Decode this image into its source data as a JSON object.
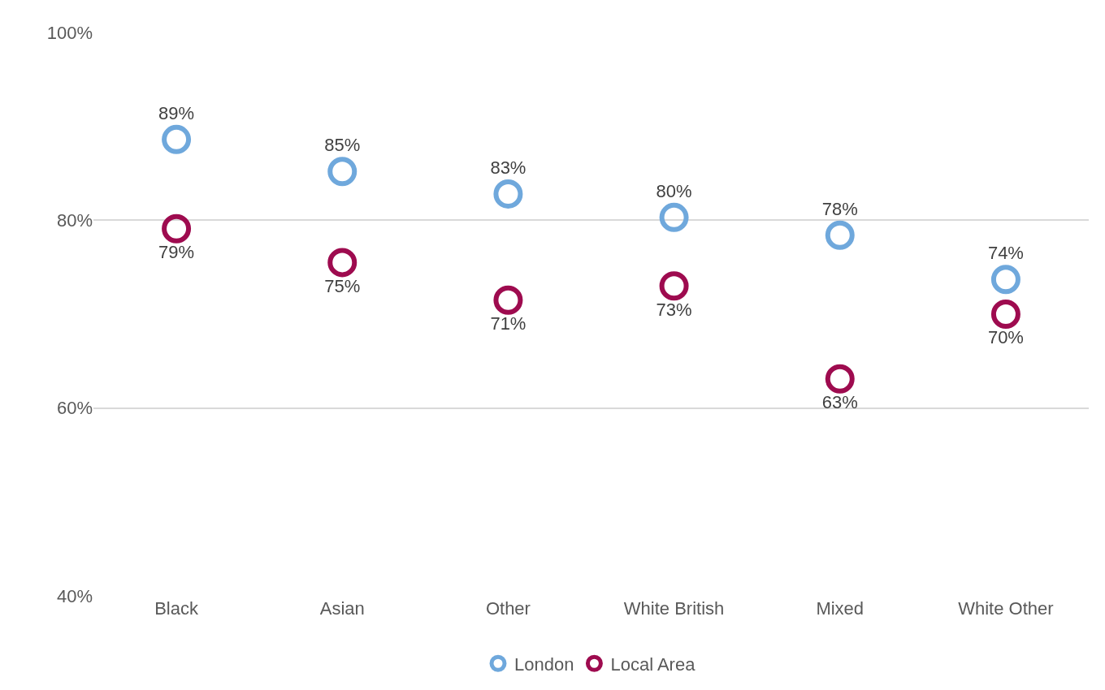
{
  "chart_data": {
    "type": "scatter",
    "categories": [
      "Black",
      "Asian",
      "Other",
      "White British",
      "Mixed",
      "White Other"
    ],
    "series": [
      {
        "name": "London",
        "color": "#6fa8dc",
        "values": [
          88.6,
          85.2,
          82.8,
          80.3,
          78.4,
          73.7
        ],
        "value_labels": [
          "89%",
          "85%",
          "83%",
          "80%",
          "78%",
          "74%"
        ]
      },
      {
        "name": "Local Area",
        "color": "#9e0b4f",
        "values": [
          79.1,
          75.5,
          71.5,
          73.0,
          63.1,
          70.0
        ],
        "value_labels": [
          "79%",
          "75%",
          "71%",
          "73%",
          "63%",
          "70%"
        ]
      }
    ],
    "ylim": [
      40,
      100
    ],
    "yticks": [
      {
        "value": 40,
        "label": "40%"
      },
      {
        "value": 60,
        "label": "60%"
      },
      {
        "value": 80,
        "label": "80%"
      },
      {
        "value": 100,
        "label": "100%"
      }
    ],
    "grid": "y",
    "legend": "bottom",
    "marker": "circle"
  }
}
